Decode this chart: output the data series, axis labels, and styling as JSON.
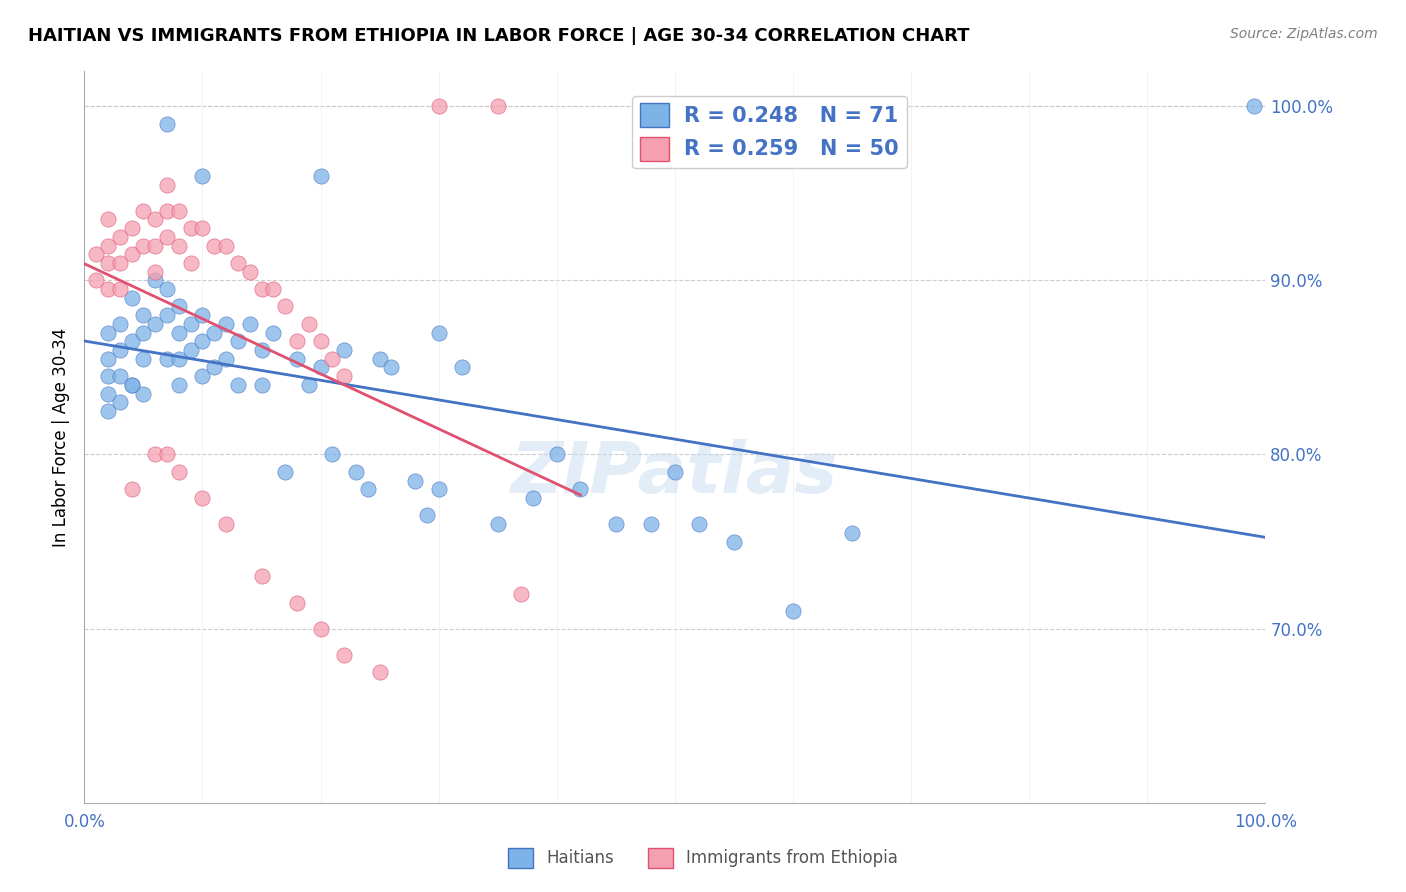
{
  "title": "HAITIAN VS IMMIGRANTS FROM ETHIOPIA IN LABOR FORCE | AGE 30-34 CORRELATION CHART",
  "source": "Source: ZipAtlas.com",
  "xlabel_bottom": "",
  "ylabel": "In Labor Force | Age 30-34",
  "xmin": 0.0,
  "xmax": 1.0,
  "ymin": 0.6,
  "ymax": 1.02,
  "xticks": [
    0.0,
    0.1,
    0.2,
    0.3,
    0.4,
    0.5,
    0.6,
    0.7,
    0.8,
    0.9,
    1.0
  ],
  "yticks": [
    0.7,
    0.8,
    0.9,
    1.0
  ],
  "ytick_labels": [
    "70.0%",
    "80.0%",
    "90.0%",
    "100.0%"
  ],
  "xtick_labels": [
    "0.0%",
    "",
    "",
    "",
    "",
    "",
    "",
    "",
    "",
    "",
    "100.0%"
  ],
  "blue_R": 0.248,
  "blue_N": 71,
  "pink_R": 0.259,
  "pink_N": 50,
  "blue_color": "#7EB3E8",
  "pink_color": "#F4A0B0",
  "blue_line_color": "#4472C4",
  "pink_line_color": "#E05070",
  "watermark": "ZIPatlas",
  "blue_scatter_x": [
    0.02,
    0.02,
    0.02,
    0.02,
    0.02,
    0.03,
    0.03,
    0.03,
    0.03,
    0.04,
    0.04,
    0.04,
    0.05,
    0.05,
    0.05,
    0.05,
    0.06,
    0.06,
    0.07,
    0.07,
    0.07,
    0.08,
    0.08,
    0.08,
    0.08,
    0.09,
    0.09,
    0.1,
    0.1,
    0.1,
    0.11,
    0.11,
    0.12,
    0.12,
    0.13,
    0.13,
    0.14,
    0.15,
    0.15,
    0.16,
    0.17,
    0.18,
    0.19,
    0.2,
    0.21,
    0.22,
    0.23,
    0.24,
    0.25,
    0.26,
    0.28,
    0.29,
    0.3,
    0.32,
    0.35,
    0.38,
    0.4,
    0.42,
    0.45,
    0.48,
    0.5,
    0.52,
    0.55,
    0.6,
    0.65,
    0.2,
    0.3,
    0.1,
    0.07,
    0.99,
    0.04
  ],
  "blue_scatter_y": [
    0.845,
    0.87,
    0.855,
    0.835,
    0.825,
    0.875,
    0.86,
    0.845,
    0.83,
    0.89,
    0.865,
    0.84,
    0.88,
    0.87,
    0.855,
    0.835,
    0.9,
    0.875,
    0.895,
    0.88,
    0.855,
    0.885,
    0.87,
    0.855,
    0.84,
    0.875,
    0.86,
    0.88,
    0.865,
    0.845,
    0.87,
    0.85,
    0.875,
    0.855,
    0.865,
    0.84,
    0.875,
    0.86,
    0.84,
    0.87,
    0.79,
    0.855,
    0.84,
    0.85,
    0.8,
    0.86,
    0.79,
    0.78,
    0.855,
    0.85,
    0.785,
    0.765,
    0.78,
    0.85,
    0.76,
    0.775,
    0.8,
    0.78,
    0.76,
    0.76,
    0.79,
    0.76,
    0.75,
    0.71,
    0.755,
    0.96,
    0.87,
    0.96,
    0.99,
    1.0,
    0.84
  ],
  "pink_scatter_x": [
    0.01,
    0.01,
    0.02,
    0.02,
    0.02,
    0.02,
    0.03,
    0.03,
    0.03,
    0.04,
    0.04,
    0.05,
    0.05,
    0.06,
    0.06,
    0.06,
    0.07,
    0.07,
    0.08,
    0.08,
    0.09,
    0.09,
    0.1,
    0.11,
    0.12,
    0.13,
    0.14,
    0.15,
    0.16,
    0.17,
    0.18,
    0.19,
    0.2,
    0.21,
    0.22,
    0.06,
    0.07,
    0.08,
    0.1,
    0.12,
    0.15,
    0.18,
    0.2,
    0.22,
    0.25,
    0.3,
    0.35,
    0.37,
    0.04,
    0.07
  ],
  "pink_scatter_y": [
    0.915,
    0.9,
    0.935,
    0.92,
    0.91,
    0.895,
    0.925,
    0.91,
    0.895,
    0.93,
    0.915,
    0.94,
    0.92,
    0.935,
    0.92,
    0.905,
    0.94,
    0.925,
    0.94,
    0.92,
    0.93,
    0.91,
    0.93,
    0.92,
    0.92,
    0.91,
    0.905,
    0.895,
    0.895,
    0.885,
    0.865,
    0.875,
    0.865,
    0.855,
    0.845,
    0.8,
    0.8,
    0.79,
    0.775,
    0.76,
    0.73,
    0.715,
    0.7,
    0.685,
    0.675,
    1.0,
    1.0,
    0.72,
    0.78,
    0.955
  ]
}
